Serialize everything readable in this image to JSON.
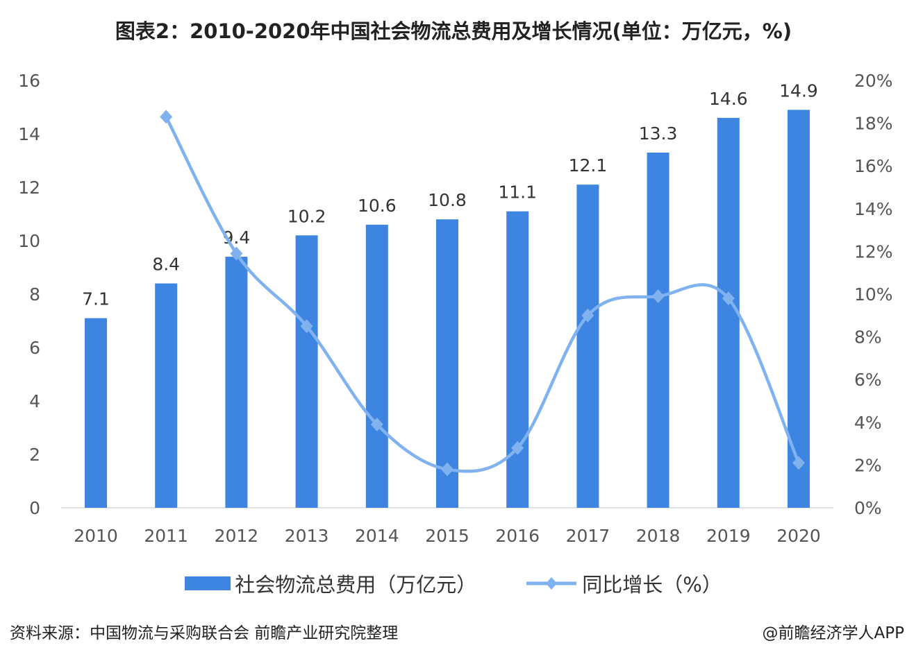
{
  "chart_data": {
    "type": "bar+line",
    "title": "图表2：2010-2020年中国社会物流总费用及增长情况(单位：万亿元，%)",
    "categories": [
      "2010",
      "2011",
      "2012",
      "2013",
      "2014",
      "2015",
      "2016",
      "2017",
      "2018",
      "2019",
      "2020"
    ],
    "series": [
      {
        "name": "社会物流总费用（万亿元）",
        "type": "bar",
        "axis": "left",
        "color": "#3d85e0",
        "values": [
          7.1,
          8.4,
          9.4,
          10.2,
          10.6,
          10.8,
          11.1,
          12.1,
          13.3,
          14.6,
          14.9
        ],
        "data_labels": [
          "7.1",
          "8.4",
          "9.4",
          "10.2",
          "10.6",
          "10.8",
          "11.1",
          "12.1",
          "13.3",
          "14.6",
          "14.9"
        ]
      },
      {
        "name": "同比增长（%）",
        "type": "line",
        "axis": "right",
        "color": "#7fb2ee",
        "smooth": true,
        "values": [
          null,
          18.3,
          11.9,
          8.5,
          3.9,
          1.8,
          2.8,
          9.0,
          9.9,
          9.8,
          2.1
        ]
      }
    ],
    "y_left": {
      "ylim": [
        0,
        16
      ],
      "ticks": [
        "0",
        "2",
        "4",
        "6",
        "8",
        "10",
        "12",
        "14",
        "16"
      ]
    },
    "y_right": {
      "ylim": [
        0,
        20
      ],
      "ticks": [
        "0%",
        "2%",
        "4%",
        "6%",
        "8%",
        "10%",
        "12%",
        "14%",
        "16%",
        "18%",
        "20%"
      ]
    },
    "grid": false,
    "legend": "bottom"
  },
  "footer": {
    "source": "资料来源：中国物流与采购联合会 前瞻产业研究院整理",
    "credit": "@前瞻经济学人APP"
  }
}
